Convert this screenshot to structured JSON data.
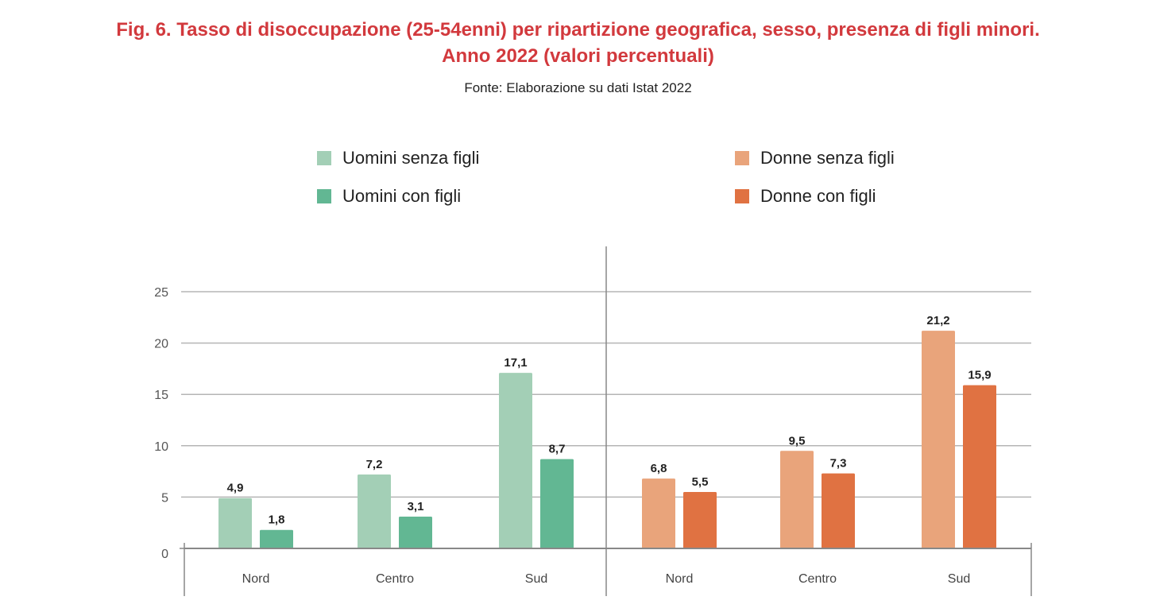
{
  "chart_data": {
    "type": "bar",
    "title": "Fig. 6. Tasso di disoccupazione (25-54enni) per ripartizione geografica, sesso, presenza di figli minori.",
    "subtitle": "Anno 2022 (valori percentuali)",
    "source": "Fonte: Elaborazione su dati Istat 2022",
    "xlabel": "",
    "ylabel": "",
    "ylim": [
      0,
      25
    ],
    "yticks": [
      0,
      5,
      10,
      15,
      20,
      25
    ],
    "grid": true,
    "legend_placement": "top",
    "groups": [
      {
        "name": "Uomini",
        "categories": [
          "Nord",
          "Centro",
          "Sud"
        ],
        "series": [
          {
            "name": "Uomini senza figli",
            "color": "#a3cfb6",
            "values": [
              4.9,
              7.2,
              17.1
            ],
            "labels": [
              "4,9",
              "7,2",
              "17,1"
            ]
          },
          {
            "name": "Uomini con figli",
            "color": "#62b793",
            "values": [
              1.8,
              3.1,
              8.7
            ],
            "labels": [
              "1,8",
              "3,1",
              "8,7"
            ]
          }
        ]
      },
      {
        "name": "Donne",
        "categories": [
          "Nord",
          "Centro",
          "Sud"
        ],
        "series": [
          {
            "name": "Donne senza figli",
            "color": "#e9a47b",
            "values": [
              6.8,
              9.5,
              21.2
            ],
            "labels": [
              "6,8",
              "9,5",
              "21,2"
            ]
          },
          {
            "name": "Donne con figli",
            "color": "#e07242",
            "values": [
              5.5,
              7.3,
              15.9
            ],
            "labels": [
              "5,5",
              "7,3",
              "15,9"
            ]
          }
        ]
      }
    ]
  }
}
